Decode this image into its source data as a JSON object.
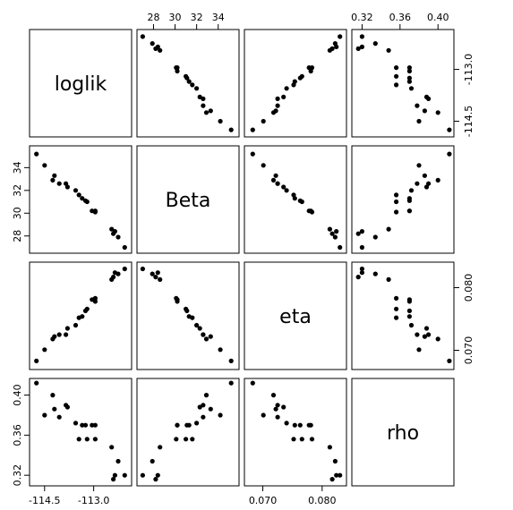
{
  "chart_data": {
    "type": "scatter",
    "title": "",
    "variables": [
      {
        "name": "loglik",
        "range": [
          -114.85,
          -111.95
        ],
        "ticks": [
          -114.5,
          -113.0
        ],
        "tick_labels": [
          "-114.5",
          "-113.0"
        ]
      },
      {
        "name": "Beta",
        "range": [
          26.8,
          35.6
        ],
        "ticks": [
          28,
          30,
          32,
          34
        ],
        "tick_labels": [
          "28",
          "30",
          "32",
          "34"
        ]
      },
      {
        "name": "eta",
        "range": [
          0.0675,
          0.0835
        ],
        "ticks": [
          0.07,
          0.08
        ],
        "tick_labels": [
          "0.070",
          "0.080"
        ]
      },
      {
        "name": "rho",
        "range": [
          0.313,
          0.413
        ],
        "ticks": [
          0.32,
          0.36,
          0.4
        ],
        "tick_labels": [
          "0.32",
          "0.36",
          "0.40"
        ]
      }
    ],
    "observations": [
      {
        "loglik": -112.05,
        "Beta": 27.0,
        "eta": 0.083,
        "rho": 0.32
      },
      {
        "loglik": -112.25,
        "Beta": 27.9,
        "eta": 0.0822,
        "rho": 0.334
      },
      {
        "loglik": -112.35,
        "Beta": 28.4,
        "eta": 0.0824,
        "rho": 0.32
      },
      {
        "loglik": -112.4,
        "Beta": 28.2,
        "eta": 0.0817,
        "rho": 0.316
      },
      {
        "loglik": -112.45,
        "Beta": 28.6,
        "eta": 0.0813,
        "rho": 0.348
      },
      {
        "loglik": -112.95,
        "Beta": 30.1,
        "eta": 0.0783,
        "rho": 0.356
      },
      {
        "loglik": -112.95,
        "Beta": 30.2,
        "eta": 0.0778,
        "rho": 0.37
      },
      {
        "loglik": -113.05,
        "Beta": 30.2,
        "eta": 0.0781,
        "rho": 0.37
      },
      {
        "loglik": -113.2,
        "Beta": 31.0,
        "eta": 0.0766,
        "rho": 0.356
      },
      {
        "loglik": -113.25,
        "Beta": 31.1,
        "eta": 0.0763,
        "rho": 0.37
      },
      {
        "loglik": -113.35,
        "Beta": 31.3,
        "eta": 0.0754,
        "rho": 0.37
      },
      {
        "loglik": -113.45,
        "Beta": 31.6,
        "eta": 0.0752,
        "rho": 0.356
      },
      {
        "loglik": -113.55,
        "Beta": 32.0,
        "eta": 0.074,
        "rho": 0.372
      },
      {
        "loglik": -113.8,
        "Beta": 32.3,
        "eta": 0.0735,
        "rho": 0.388
      },
      {
        "loglik": -113.85,
        "Beta": 32.6,
        "eta": 0.0725,
        "rho": 0.39
      },
      {
        "loglik": -114.05,
        "Beta": 32.6,
        "eta": 0.0725,
        "rho": 0.378
      },
      {
        "loglik": -114.2,
        "Beta": 33.3,
        "eta": 0.0722,
        "rho": 0.386
      },
      {
        "loglik": -114.25,
        "Beta": 32.9,
        "eta": 0.0718,
        "rho": 0.4
      },
      {
        "loglik": -114.5,
        "Beta": 34.2,
        "eta": 0.0701,
        "rho": 0.38
      },
      {
        "loglik": -114.75,
        "Beta": 35.2,
        "eta": 0.0683,
        "rho": 0.412
      }
    ]
  }
}
